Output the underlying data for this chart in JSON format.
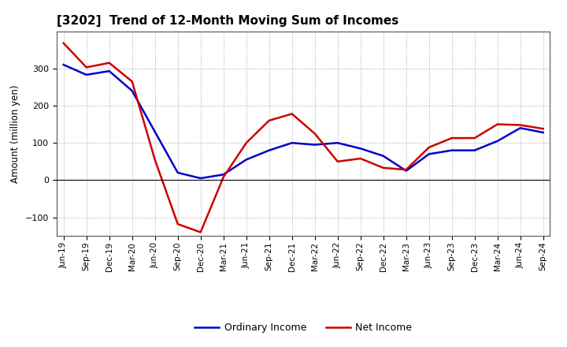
{
  "title": "[3202]  Trend of 12-Month Moving Sum of Incomes",
  "ylabel": "Amount (million yen)",
  "x_labels": [
    "Jun-19",
    "Sep-19",
    "Dec-19",
    "Mar-20",
    "Jun-20",
    "Sep-20",
    "Dec-20",
    "Mar-21",
    "Jun-21",
    "Sep-21",
    "Dec-21",
    "Mar-22",
    "Jun-22",
    "Sep-22",
    "Dec-22",
    "Mar-23",
    "Jun-23",
    "Sep-23",
    "Dec-23",
    "Mar-24",
    "Jun-24",
    "Sep-24"
  ],
  "ordinary_income": [
    310,
    283,
    293,
    240,
    130,
    20,
    5,
    15,
    55,
    80,
    100,
    95,
    100,
    85,
    65,
    25,
    70,
    80,
    80,
    105,
    140,
    128
  ],
  "net_income": [
    368,
    303,
    315,
    265,
    55,
    -118,
    -140,
    8,
    100,
    160,
    178,
    125,
    50,
    58,
    33,
    28,
    88,
    113,
    113,
    150,
    148,
    138
  ],
  "ordinary_income_color": "#0000cc",
  "net_income_color": "#cc0000",
  "ylim": [
    -150,
    400
  ],
  "yticks": [
    -100,
    0,
    100,
    200,
    300
  ],
  "background_color": "#ffffff",
  "grid_color": "#999999",
  "legend_labels": [
    "Ordinary Income",
    "Net Income"
  ]
}
